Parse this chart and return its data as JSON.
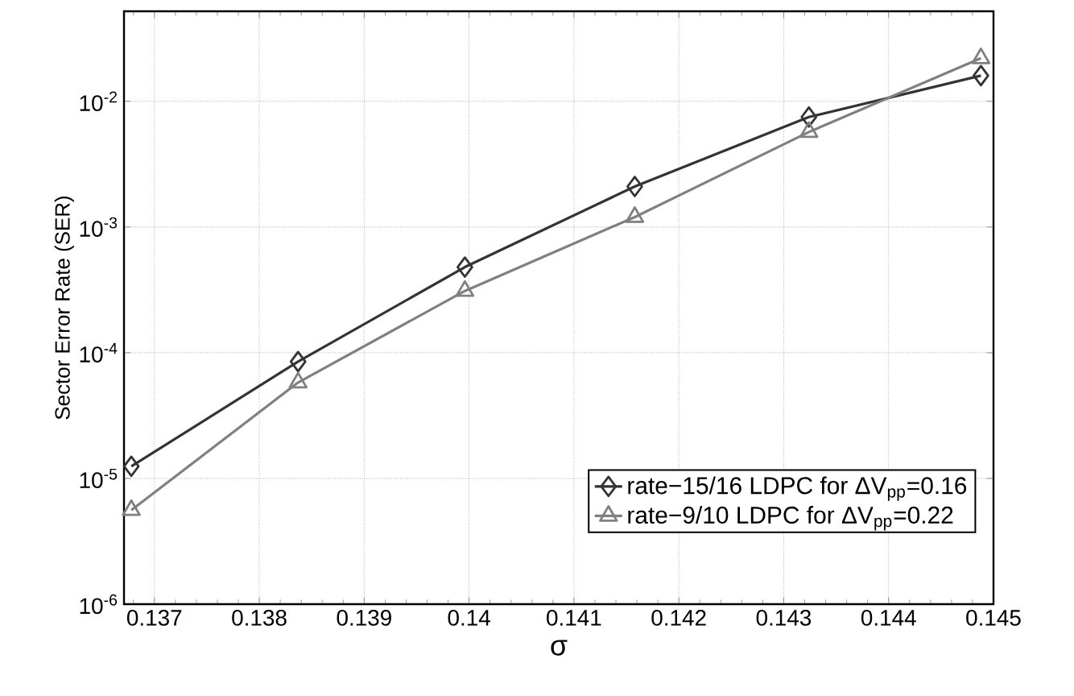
{
  "chart_data": {
    "type": "line",
    "xlabel": "σ",
    "ylabel": "Sector Error Rate (SER)",
    "log": "y",
    "grid": true,
    "legend": "bottom right",
    "line_style": "solid",
    "xlim": [
      0.13671,
      0.145
    ],
    "xticks": [
      0.137,
      0.138,
      0.139,
      0.14,
      0.141,
      0.142,
      0.143,
      0.144,
      0.145
    ],
    "ylim": [
      1e-06,
      0.052
    ],
    "yticks": [
      {
        "value": 1e-06,
        "label": "10$^{-6}$"
      },
      {
        "value": 1e-05,
        "label": "10$^{-5}$"
      },
      {
        "value": 0.0001,
        "label": "10$^{-4}$"
      },
      {
        "value": 0.001,
        "label": "10$^{-3}$"
      },
      {
        "value": 0.01,
        "label": "10$^{-2}$"
      }
    ],
    "series": [
      {
        "name": "rate−15/16 LDPC for ΔV$_{pp}$=0.16",
        "color": "#333333",
        "marker": "diamond",
        "x": [
          0.13678,
          0.13837,
          0.13996,
          0.14158,
          0.14324,
          0.14488
        ],
        "values": [
          1.25e-05,
          8.5e-05,
          0.00048,
          0.0021,
          0.0075,
          0.016
        ]
      },
      {
        "name": "rate−9/10 LDPC for ΔV$_{pp}$=0.22",
        "color": "#808080",
        "marker": "triangle",
        "x": [
          0.13678,
          0.13837,
          0.13996,
          0.14158,
          0.14324,
          0.14488
        ],
        "values": [
          5.6e-06,
          5.8e-05,
          0.00031,
          0.0012,
          0.0057,
          0.022
        ]
      }
    ]
  }
}
